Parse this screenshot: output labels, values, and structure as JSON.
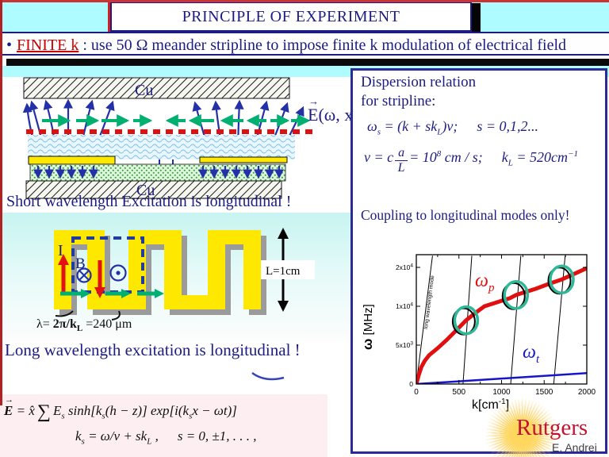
{
  "slide": {
    "title": "PRINCIPLE OF EXPERIMENT",
    "bullet_mark": "•",
    "bullet_lead": "FINITE k",
    "bullet_sep": " :  ",
    "bullet_body": "use 50 Ω meander stripline to impose finite k modulation of electrical field"
  },
  "top_diagram": {
    "cu_top": "Cu",
    "cu_bottom": "Cu",
    "e_arrow": "→",
    "e_sym": "E",
    "e_args": "(ω, x)",
    "caption": "Short wavelength Excitation is longitudinal !"
  },
  "panel": {
    "head1": "Dispersion relation",
    "head2": "for stripline:",
    "eq1": {
      "w": "ω",
      "s": "s",
      "t1": " = (k + sk",
      "L": "L",
      "t2": ")v;",
      "cond": "s = 0,1,2..."
    },
    "eq2": {
      "t1": "v = c",
      "num": "a",
      "den": "L",
      "t2": "= 10",
      "sup": "8",
      "t3": " cm / s;",
      "k": "k",
      "L": "L",
      "t4": " = 520cm",
      "sup2": "−1"
    },
    "note": "Coupling to longitudinal modes only!"
  },
  "meander": {
    "current": "I",
    "b_label": "B",
    "length": "L=1cm",
    "lam_a": "λ= ",
    "lam_b": "2π/k",
    "lam_sub": "L",
    "lam_c": " =240 μm",
    "caption": "Long wavelength excitation is longitudinal !"
  },
  "equations": {
    "e1": {
      "arrow": "→",
      "E": "E",
      "eq": " = ",
      "xhat": "x̂",
      "sum": "∑",
      "Es": "E",
      "s": "s",
      "t1": " sinh[k",
      "t2": "(h − z)] exp[i(k",
      "t3": "x − ωt)]"
    },
    "e2": {
      "k": "k",
      "s": "s",
      "t1": " = ω/v + sk",
      "L": "L",
      "t2": " ,",
      "cond": "s = 0, ±1, . . . ,"
    }
  },
  "footer": {
    "logo": "Rutgers",
    "author": "E. Andrei"
  },
  "chart_data": {
    "type": "line",
    "title": "",
    "xlabel": "k[cm⁻¹]",
    "ylabel": "ω [MHz]",
    "xlabel_parts": {
      "base": "k[cm",
      "sup": "-1",
      "end": "]"
    },
    "ylabel_parts": {
      "sym": "ω",
      "unit": " [MHz]"
    },
    "xlim": [
      0,
      2000
    ],
    "x_ticks": [
      0,
      500,
      1000,
      1500,
      2000
    ],
    "x_minor_step": 250,
    "y_ticks": [
      {
        "value": 0,
        "base": "0",
        "sup": ""
      },
      {
        "value": 5000,
        "base": "5x10",
        "sup": "3"
      },
      {
        "value": 10000,
        "base": "1x10",
        "sup": "4"
      },
      {
        "value": 20000,
        "base": "2x10",
        "sup": "4"
      }
    ],
    "grid": false,
    "legend": false,
    "series": [
      {
        "name": "plasmon dispersion omega_p",
        "label_sym": "ω",
        "label_sub": "p",
        "color": "#e01010",
        "width": 5,
        "points": [
          [
            0,
            0
          ],
          [
            30,
            1200
          ],
          [
            60,
            2200
          ],
          [
            100,
            3000
          ],
          [
            150,
            3700
          ],
          [
            250,
            4600
          ],
          [
            350,
            5600
          ],
          [
            450,
            6700
          ],
          [
            585,
            8200
          ],
          [
            700,
            9200
          ],
          [
            800,
            10000
          ],
          [
            900,
            10700
          ],
          [
            1000,
            11400
          ],
          [
            1100,
            12100
          ],
          [
            1170,
            12900
          ],
          [
            1300,
            13800
          ],
          [
            1400,
            14500
          ],
          [
            1500,
            15300
          ],
          [
            1600,
            16100
          ],
          [
            1707,
            16900
          ],
          [
            1850,
            18300
          ],
          [
            2000,
            19800
          ]
        ]
      },
      {
        "name": "transverse mode omega_t",
        "label_sym": "ω",
        "label_sub": "t",
        "color": "#1616c8",
        "width": 2.5,
        "points": [
          [
            0,
            0
          ],
          [
            500,
            350
          ],
          [
            1000,
            700
          ],
          [
            1500,
            1050
          ],
          [
            2000,
            1400
          ]
        ]
      }
    ],
    "mode_lines": {
      "note": "long wavelength mode",
      "color": "#000000",
      "width": 1,
      "lines": [
        [
          0,
          0,
          190,
          23000
        ],
        [
          548,
          0,
          651,
          23000
        ],
        [
          1107,
          0,
          1226,
          23000
        ],
        [
          1612,
          0,
          1746,
          23000
        ]
      ]
    },
    "crossing_circles": {
      "color": "#2db897",
      "points": [
        [
          585,
          8200
        ],
        [
          1170,
          12900
        ],
        [
          1707,
          16900
        ]
      ]
    }
  }
}
